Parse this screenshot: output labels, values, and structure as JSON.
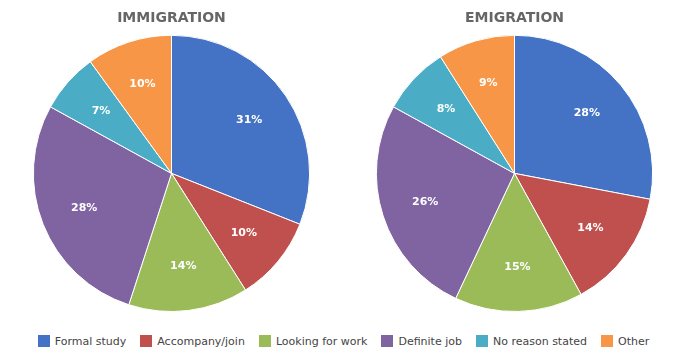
{
  "chart_data": [
    {
      "type": "pie",
      "title": "IMMIGRATION",
      "categories": [
        "Formal study",
        "Accompany/join",
        "Looking for work",
        "Definite job",
        "No reason stated",
        "Other"
      ],
      "values": [
        31,
        10,
        14,
        28,
        7,
        10
      ],
      "value_labels": [
        "31%",
        "10%",
        "14%",
        "28%",
        "7%",
        "10%"
      ],
      "colors": [
        "#4472C4",
        "#C0504D",
        "#9BBB59",
        "#8064A2",
        "#4BACC6",
        "#F79646"
      ],
      "data_labels": true,
      "legend": "bottom"
    },
    {
      "type": "pie",
      "title": "EMIGRATION",
      "categories": [
        "Formal study",
        "Accompany/join",
        "Looking for work",
        "Definite job",
        "No reason stated",
        "Other"
      ],
      "values": [
        28,
        14,
        15,
        26,
        8,
        9
      ],
      "value_labels": [
        "28%",
        "14%",
        "15%",
        "26%",
        "8%",
        "9%"
      ],
      "colors": [
        "#4472C4",
        "#C0504D",
        "#9BBB59",
        "#8064A2",
        "#4BACC6",
        "#F79646"
      ],
      "data_labels": true
    }
  ]
}
